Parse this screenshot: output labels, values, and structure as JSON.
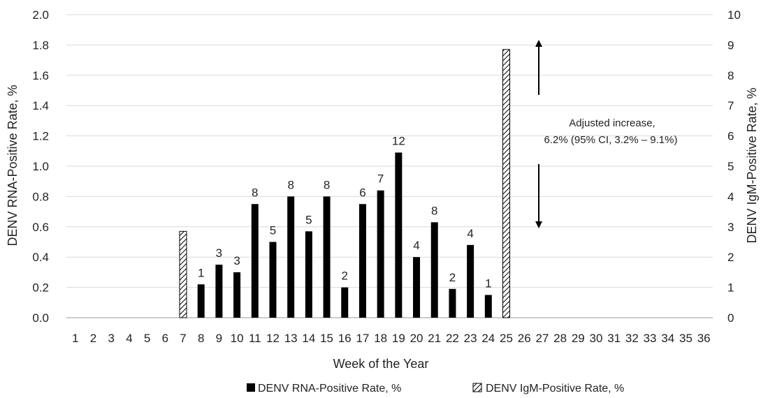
{
  "chart_data": {
    "type": "bar",
    "xlabel": "Week of the Year",
    "ylabel_left": "DENV RNA-Positive Rate, %",
    "ylabel_right": "DENV IgM-Positive Rate, %",
    "ylim_left": [
      0,
      2.0
    ],
    "ylim_right": [
      0,
      10
    ],
    "yticks_left": [
      "0.0",
      "0.2",
      "0.4",
      "0.6",
      "0.8",
      "1.0",
      "1.2",
      "1.4",
      "1.6",
      "1.8",
      "2.0"
    ],
    "yticks_right": [
      "0",
      "1",
      "2",
      "3",
      "4",
      "5",
      "6",
      "7",
      "8",
      "9",
      "10"
    ],
    "categories": [
      "1",
      "2",
      "3",
      "4",
      "5",
      "6",
      "7",
      "8",
      "9",
      "10",
      "11",
      "12",
      "13",
      "14",
      "15",
      "16",
      "17",
      "18",
      "19",
      "20",
      "21",
      "22",
      "23",
      "24",
      "25",
      "26",
      "27",
      "28",
      "29",
      "30",
      "31",
      "32",
      "33",
      "34",
      "35",
      "36"
    ],
    "grid": true,
    "legend_position": "bottom",
    "series": [
      {
        "name": "DENV RNA-Positive Rate, %",
        "axis": "left",
        "color": "#000000",
        "pattern": "solid",
        "points": [
          {
            "week": 8,
            "value": 0.22,
            "label": "1"
          },
          {
            "week": 9,
            "value": 0.35,
            "label": "3"
          },
          {
            "week": 10,
            "value": 0.3,
            "label": "3"
          },
          {
            "week": 11,
            "value": 0.75,
            "label": "8"
          },
          {
            "week": 12,
            "value": 0.5,
            "label": "5"
          },
          {
            "week": 13,
            "value": 0.8,
            "label": "8"
          },
          {
            "week": 14,
            "value": 0.57,
            "label": "5"
          },
          {
            "week": 15,
            "value": 0.8,
            "label": "8"
          },
          {
            "week": 16,
            "value": 0.2,
            "label": "2"
          },
          {
            "week": 17,
            "value": 0.75,
            "label": "6"
          },
          {
            "week": 18,
            "value": 0.84,
            "label": "7"
          },
          {
            "week": 19,
            "value": 1.09,
            "label": "12"
          },
          {
            "week": 20,
            "value": 0.4,
            "label": "4"
          },
          {
            "week": 21,
            "value": 0.63,
            "label": "8"
          },
          {
            "week": 22,
            "value": 0.19,
            "label": "2"
          },
          {
            "week": 23,
            "value": 0.48,
            "label": "4"
          },
          {
            "week": 24,
            "value": 0.15,
            "label": "1"
          }
        ]
      },
      {
        "name": "DENV IgM-Positive Rate, %",
        "axis": "right",
        "color": "#000000",
        "pattern": "diagonal-hatch",
        "points": [
          {
            "week": 7,
            "value": 2.85
          },
          {
            "week": 25,
            "value": 8.85
          }
        ]
      }
    ],
    "annotations": [
      {
        "text_lines": [
          "Adjusted increase,",
          "6.2% (95% CI, 3.2% – 9.1%)"
        ],
        "arrows": [
          "up",
          "down"
        ]
      }
    ]
  }
}
